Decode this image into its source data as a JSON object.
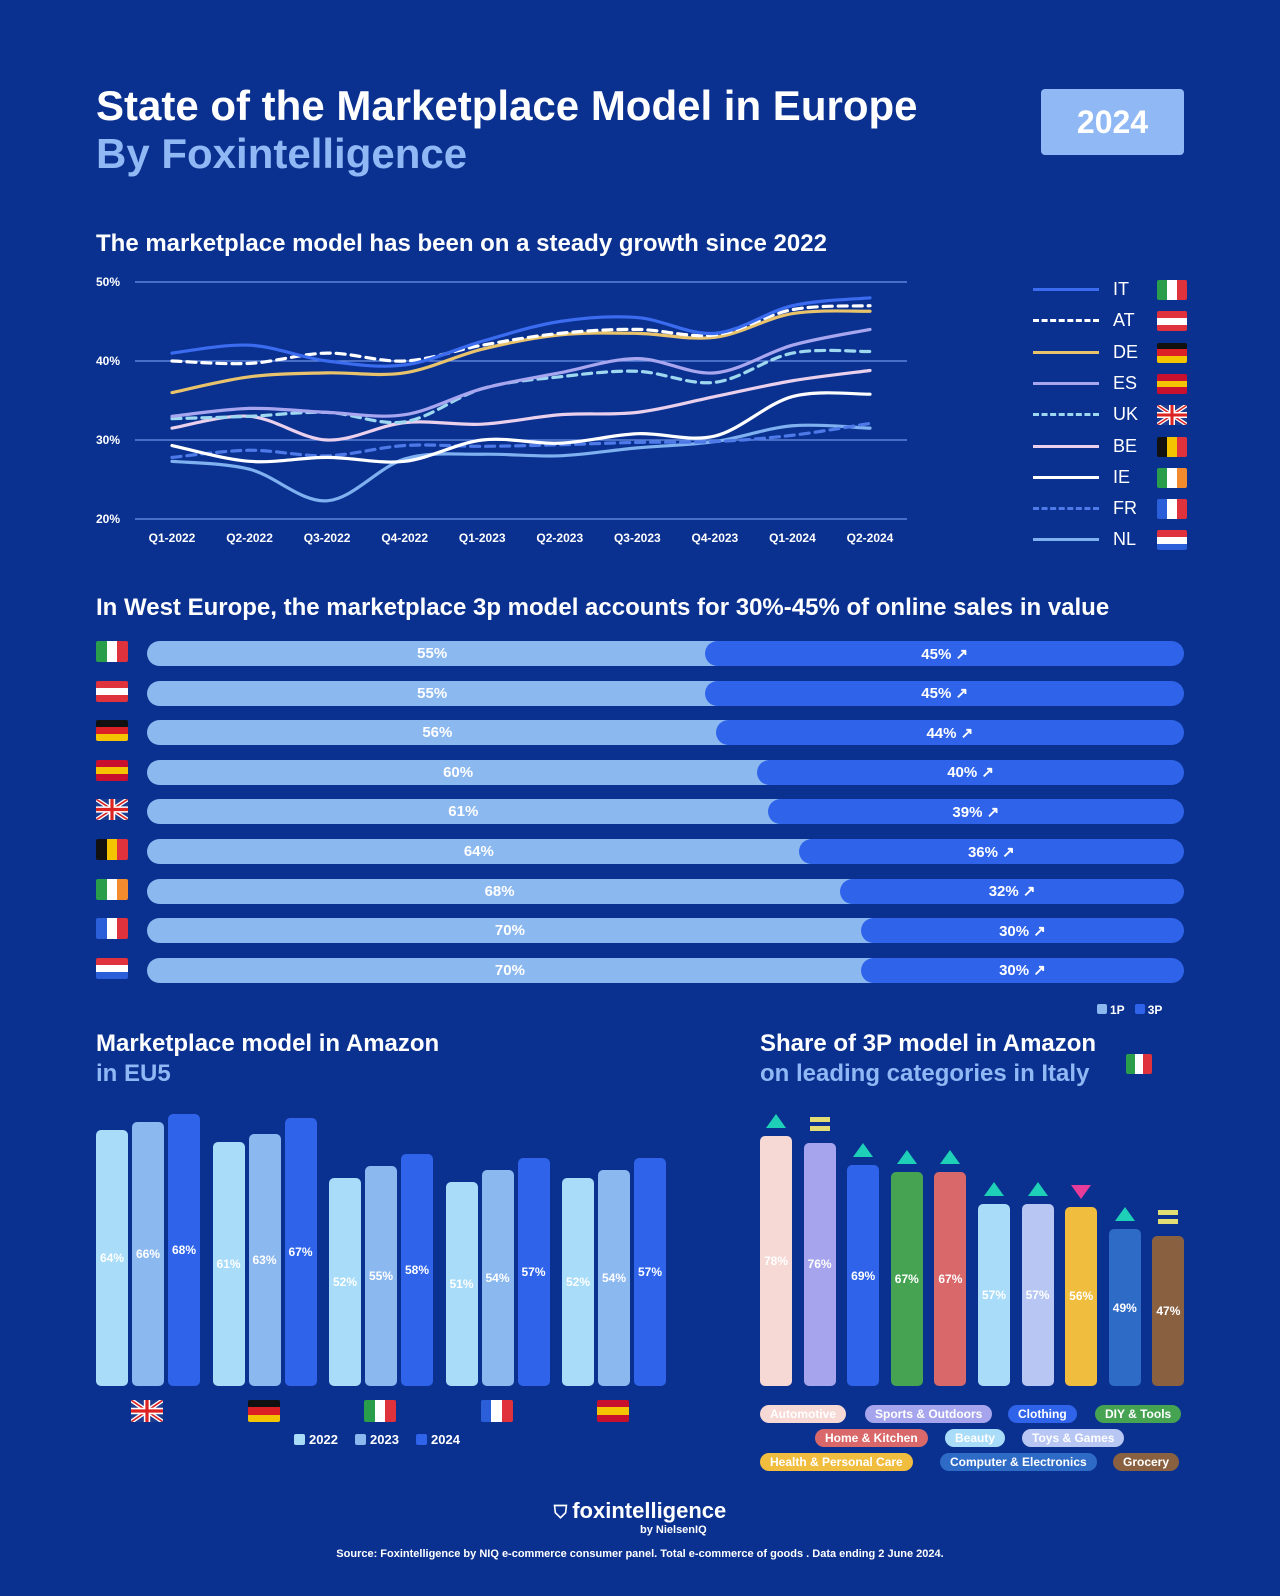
{
  "header": {
    "title": "State of the Marketplace Model in Europe",
    "subtitle": "By Foxintelligence",
    "year": "2024"
  },
  "colors": {
    "bg": "#0a3190",
    "p1": "#8cb8f0",
    "p3": "#2f64ea"
  },
  "chart_data": [
    {
      "type": "line",
      "title": "The marketplace model has been on a steady growth since 2022",
      "ylim": [
        20,
        50
      ],
      "yticks": [
        "20%",
        "30%",
        "40%",
        "50%"
      ],
      "ytick_values": [
        20,
        30,
        40,
        50
      ],
      "x": [
        "Q1-2022",
        "Q2-2022",
        "Q3-2022",
        "Q4-2022",
        "Q1-2023",
        "Q2-2023",
        "Q3-2023",
        "Q4-2023",
        "Q1-2024",
        "Q2-2024"
      ],
      "series": [
        {
          "name": "IT",
          "color": "#3b6cf0",
          "dashed": false,
          "values": [
            41,
            42,
            40,
            39.5,
            42.5,
            45,
            45.5,
            43.5,
            47,
            48
          ]
        },
        {
          "name": "AT",
          "color": "#ffffff",
          "dashed": true,
          "values": [
            40,
            39.7,
            41,
            40,
            42,
            43.5,
            44,
            43.3,
            46.5,
            47
          ]
        },
        {
          "name": "DE",
          "color": "#e8c36c",
          "dashed": false,
          "values": [
            36,
            38,
            38.5,
            38.5,
            41.5,
            43.3,
            43.5,
            43,
            46,
            46.3
          ]
        },
        {
          "name": "ES",
          "color": "#a9a6f0",
          "dashed": false,
          "values": [
            33,
            34,
            33.5,
            33.2,
            36.5,
            38.5,
            40.3,
            38.5,
            42,
            44
          ]
        },
        {
          "name": "UK",
          "color": "#9ed8f0",
          "dashed": true,
          "values": [
            32.7,
            33,
            33.5,
            32.3,
            36.5,
            38,
            38.7,
            37.3,
            41,
            41.2
          ]
        },
        {
          "name": "BE",
          "color": "#ead0ec",
          "dashed": false,
          "values": [
            31.5,
            33,
            30,
            32.2,
            32,
            33.2,
            33.5,
            35.5,
            37.5,
            38.8
          ]
        },
        {
          "name": "IE",
          "color": "#ffffff",
          "dashed": false,
          "values": [
            29.3,
            27.3,
            27.8,
            27.3,
            30,
            29.6,
            30.8,
            30.5,
            35.5,
            35.8
          ]
        },
        {
          "name": "FR",
          "color": "#4d7ae8",
          "dashed": true,
          "values": [
            27.8,
            28.7,
            28,
            29.3,
            29.2,
            29.4,
            29.7,
            29.8,
            30.6,
            32.1
          ]
        },
        {
          "name": "NL",
          "color": "#7fb0f0",
          "dashed": false,
          "values": [
            27.3,
            26.3,
            22.3,
            27.6,
            28.2,
            28,
            29,
            29.8,
            31.8,
            31.5
          ]
        }
      ]
    },
    {
      "type": "bar",
      "title": "In West Europe,  the marketplace 3p model accounts for 30%-45% of online sales in value",
      "orientation": "horizontal-stacked",
      "categories": [
        "IT",
        "AT",
        "DE",
        "ES",
        "UK",
        "BE",
        "IE",
        "FR",
        "NL"
      ],
      "series": [
        {
          "name": "1P",
          "values": [
            55,
            55,
            56,
            60,
            61,
            64,
            68,
            70,
            70
          ]
        },
        {
          "name": "3P",
          "values": [
            45,
            45,
            44,
            40,
            39,
            36,
            32,
            30,
            30
          ]
        }
      ],
      "labels_1p": [
        "55%",
        "55%",
        "56%",
        "60%",
        "61%",
        "64%",
        "68%",
        "70%",
        "70%"
      ],
      "labels_3p": [
        "45% ↗",
        "45% ↗",
        "44% ↗",
        "40% ↗",
        "39% ↗",
        "36% ↗",
        "32% ↗",
        "30% ↗",
        "30% ↗"
      ],
      "legend": [
        "1P",
        "3P"
      ]
    },
    {
      "type": "bar",
      "title": "Marketplace model in Amazon",
      "subtitle": "in EU5",
      "categories": [
        "UK",
        "DE",
        "IT",
        "FR",
        "ES"
      ],
      "series": [
        {
          "name": "2022",
          "color": "#a8dcf8",
          "values": [
            64,
            61,
            52,
            51,
            52
          ]
        },
        {
          "name": "2023",
          "color": "#8cb8f0",
          "values": [
            66,
            63,
            55,
            54,
            54
          ]
        },
        {
          "name": "2024",
          "color": "#2f64ea",
          "values": [
            68,
            67,
            58,
            57,
            57
          ]
        }
      ]
    },
    {
      "type": "bar",
      "title": "Share of 3P model in Amazon",
      "subtitle": "on leading categories in Italy",
      "categories": [
        "Automotive",
        "Sports & Outdoors",
        "Clothing",
        "DIY & Tools",
        "Home & Kitchen",
        "Beauty",
        "Toys & Games",
        "Health & Personal Care",
        "Computer & Electronics",
        "Grocery"
      ],
      "values": [
        78,
        76,
        69,
        67,
        67,
        57,
        57,
        56,
        49,
        47
      ],
      "trend": [
        "up",
        "flat",
        "up",
        "up",
        "up",
        "up",
        "up",
        "down",
        "up",
        "flat"
      ],
      "colors": [
        "#f6d8d4",
        "#a6a4ec",
        "#2f64ea",
        "#45a352",
        "#d9686a",
        "#a8dcf8",
        "#b7c6f2",
        "#f1bd3f",
        "#2e6bc6",
        "#8a6140"
      ]
    }
  ],
  "footer": {
    "brand": "foxintelligence",
    "by": "by NielsenIQ",
    "source": "Source: Foxintelligence by NIQ e-commerce consumer panel. Total e-commerce of goods . Data ending 2 June 2024."
  }
}
